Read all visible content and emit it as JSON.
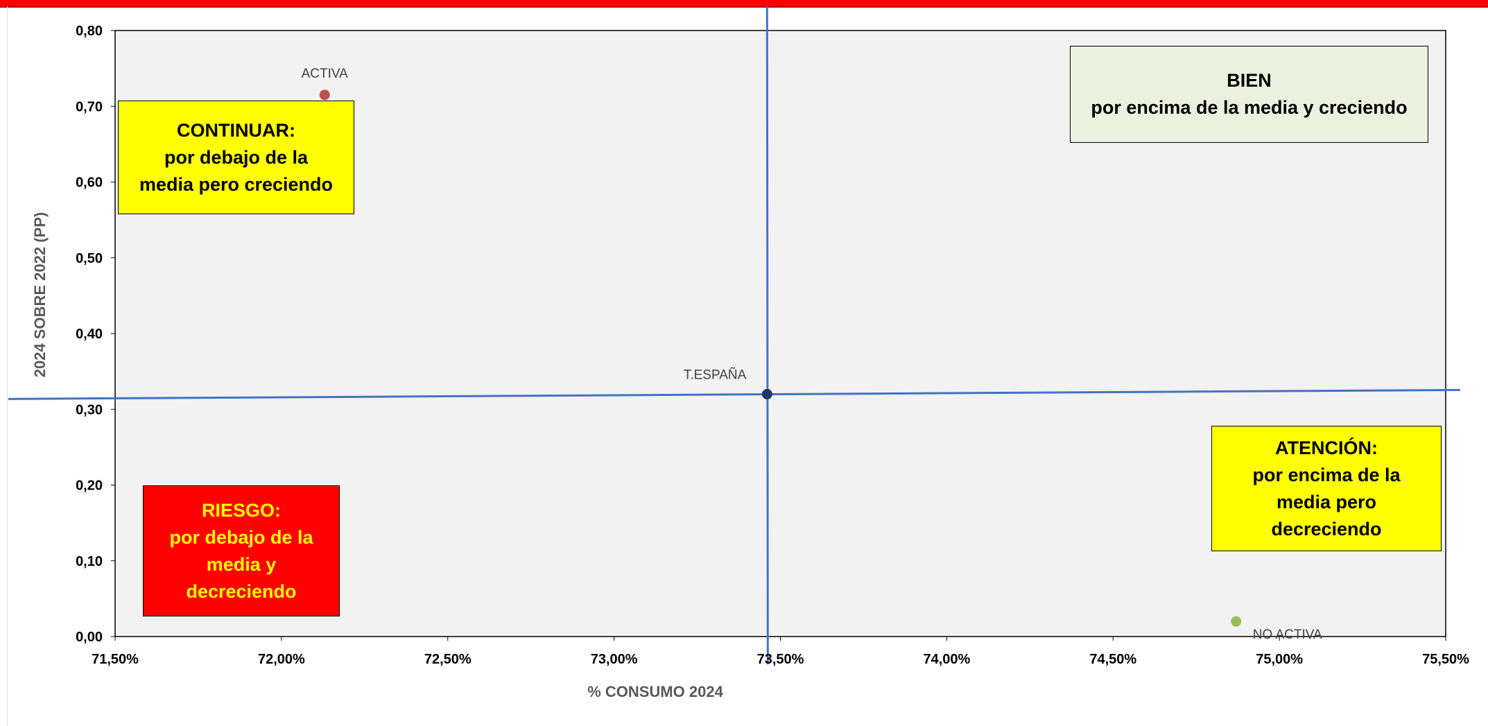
{
  "colors": {
    "top_bar": "#ff0000",
    "plot_background": "#f2f2f2",
    "reference_lines": "#4472c4",
    "activa_point": "#c0504d",
    "t_espana_point": "#1f3864",
    "no_activa_point": "#9bbb59"
  },
  "quadrants": {
    "continuar": {
      "text": "CONTINUAR:\npor debajo de la\nmedia pero creciendo",
      "background": "#ffff00",
      "color": "#000000"
    },
    "bien": {
      "text": "BIEN\npor encima de la media y creciendo",
      "background": "#ebf1de",
      "color": "#000000"
    },
    "atencion": {
      "text": "ATENCIÓN:\npor encima de la\nmedia pero\ndecreciendo",
      "background": "#ffff00",
      "color": "#000000"
    },
    "riesgo": {
      "text": "RIESGO:\npor debajo de la\nmedia y\ndecreciendo",
      "background": "#ff0000",
      "color": "#ffff00"
    }
  },
  "chart_data": {
    "type": "scatter",
    "title": "",
    "xlabel": "% CONSUMO 2024",
    "ylabel": "2024 SOBRE 2022 (PP)",
    "xlim": [
      71.5,
      75.5
    ],
    "ylim": [
      0,
      0.8
    ],
    "x_ticks": [
      "71,50%",
      "72,00%",
      "72,50%",
      "73,00%",
      "73,50%",
      "74,00%",
      "74,50%",
      "75,00%",
      "75,50%"
    ],
    "y_ticks": [
      "0,00",
      "0,10",
      "0,20",
      "0,30",
      "0,40",
      "0,50",
      "0,60",
      "0,70",
      "0,80"
    ],
    "grid": false,
    "legend": "none",
    "points": [
      {
        "label": "ACTIVA",
        "x": 72.13,
        "y": 0.715,
        "color": "#c0504d"
      },
      {
        "label": "T.ESPAÑA",
        "x": 73.46,
        "y": 0.32,
        "color": "#1f3864"
      },
      {
        "label": "NO ACTIVA",
        "x": 74.87,
        "y": 0.02,
        "color": "#9bbb59"
      }
    ],
    "reference_lines": {
      "vertical_x": 73.46,
      "horizontal_y": 0.32
    }
  }
}
